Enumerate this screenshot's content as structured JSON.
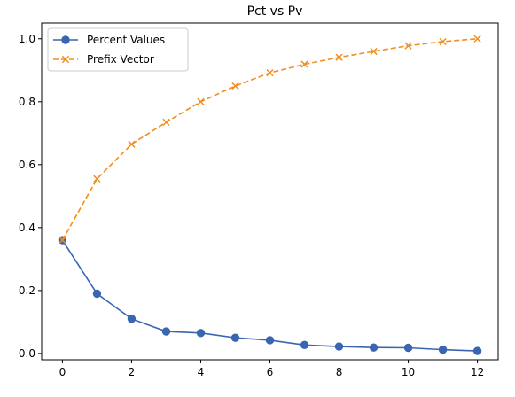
{
  "chart_data": {
    "type": "line",
    "title": "Pct vs Pv",
    "xlabel": "",
    "ylabel": "",
    "xlim": [
      -0.6,
      12.6
    ],
    "ylim": [
      -0.02,
      1.05
    ],
    "xticks": [
      0,
      2,
      4,
      6,
      8,
      10,
      12
    ],
    "yticks": [
      0.0,
      0.2,
      0.4,
      0.6,
      0.8,
      1.0
    ],
    "xtick_labels": [
      "0",
      "2",
      "4",
      "6",
      "8",
      "10",
      "12"
    ],
    "ytick_labels": [
      "0.0",
      "0.2",
      "0.4",
      "0.6",
      "0.8",
      "1.0"
    ],
    "grid": false,
    "legend_position": "top-left",
    "x": [
      0,
      1,
      2,
      3,
      4,
      5,
      6,
      7,
      8,
      9,
      10,
      11,
      12
    ],
    "series": [
      {
        "name": "Percent Values",
        "color": "#3a65b0",
        "line_style": "solid",
        "marker": "circle",
        "values": [
          0.36,
          0.19,
          0.11,
          0.07,
          0.065,
          0.05,
          0.042,
          0.027,
          0.022,
          0.019,
          0.018,
          0.012,
          0.008
        ]
      },
      {
        "name": "Prefix Vector",
        "color": "#f28e1c",
        "line_style": "dashed",
        "marker": "x",
        "values": [
          0.36,
          0.555,
          0.665,
          0.735,
          0.8,
          0.85,
          0.892,
          0.919,
          0.941,
          0.96,
          0.978,
          0.991,
          1.0
        ]
      }
    ]
  }
}
